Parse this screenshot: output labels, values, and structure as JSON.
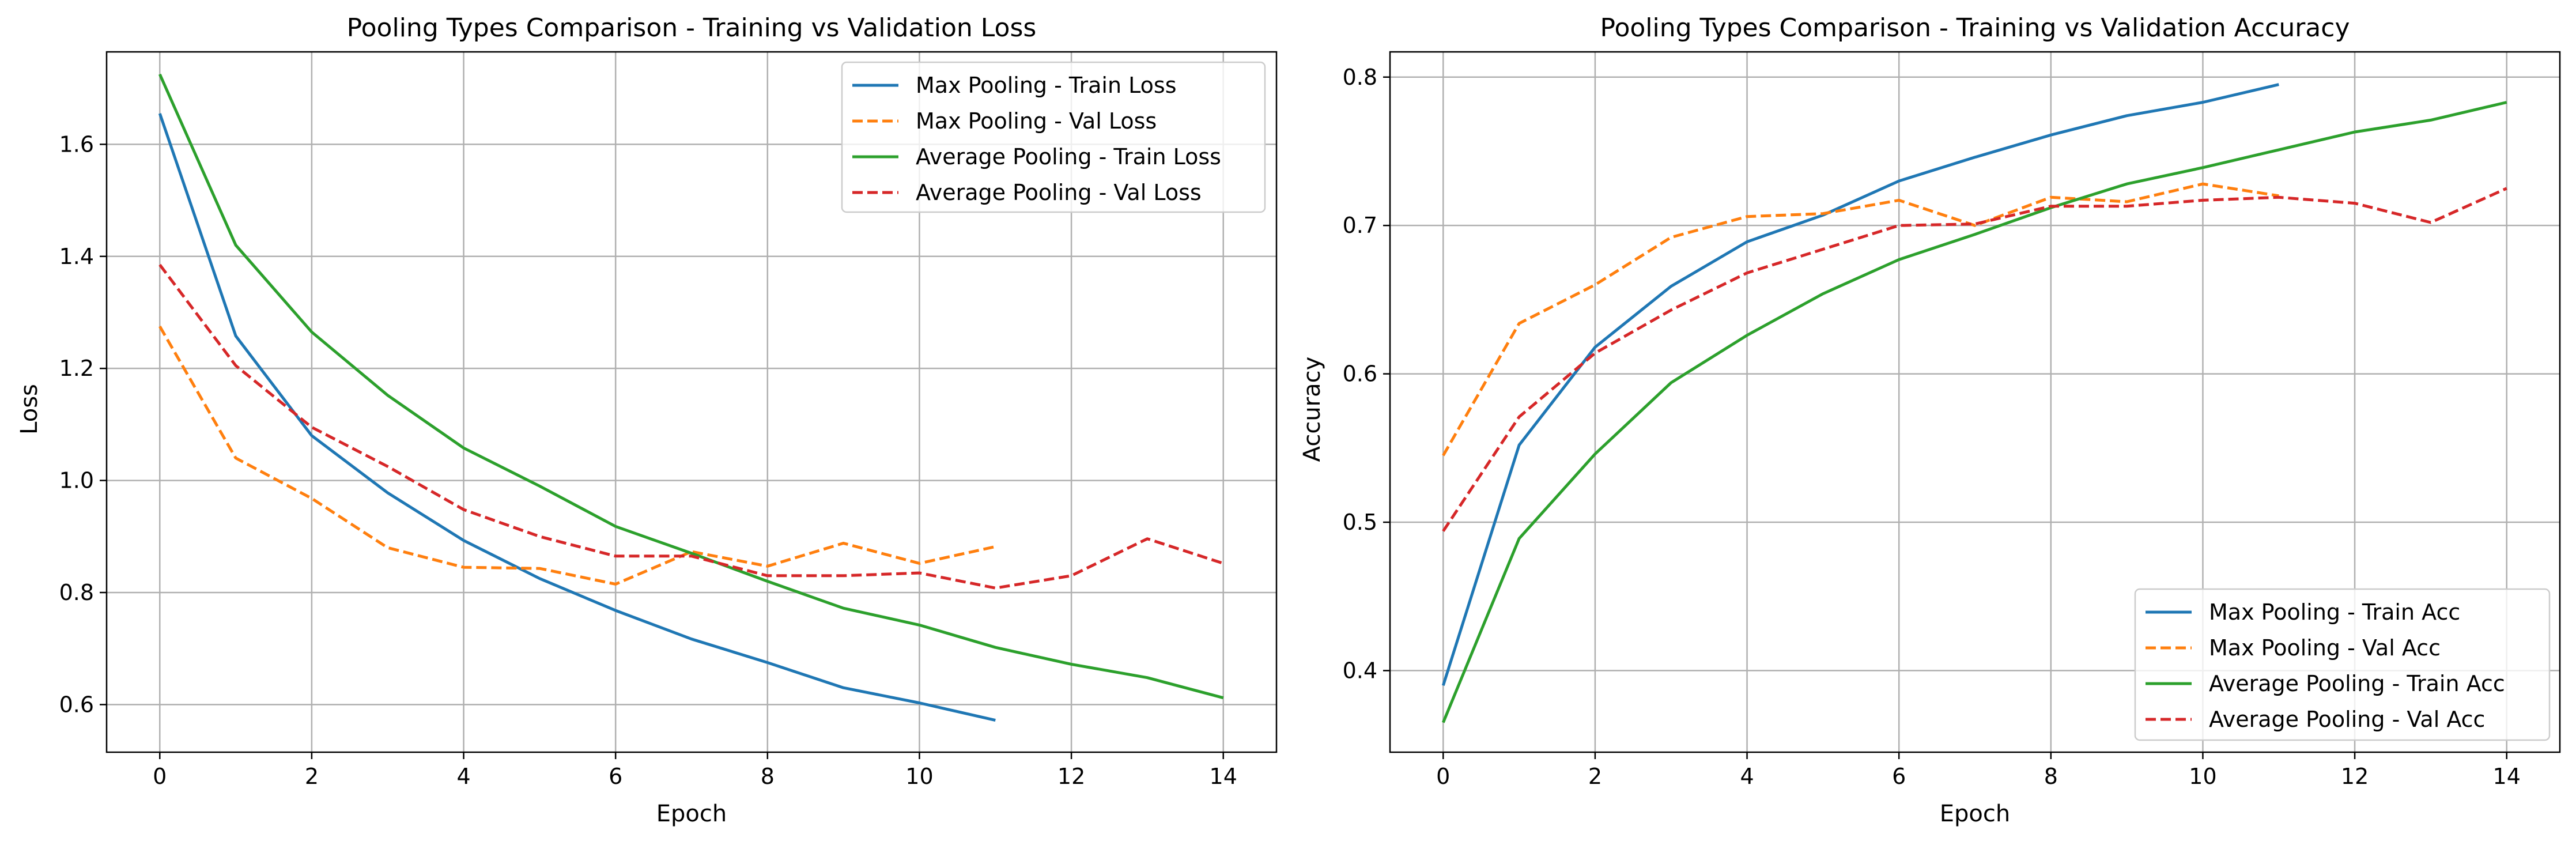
{
  "figure": {
    "background": "#ffffff",
    "grid_color": "#b0b0b0",
    "axes_color": "#000000"
  },
  "chart_data": [
    {
      "type": "line",
      "title": "Pooling Types Comparison - Training vs Validation Loss",
      "xlabel": "Epoch",
      "ylabel": "Loss",
      "xlim": [
        -0.7,
        14.7
      ],
      "ylim": [
        0.515,
        1.765
      ],
      "xticks": [
        0,
        2,
        4,
        6,
        8,
        10,
        12,
        14
      ],
      "yticks": [
        0.6,
        0.8,
        1.0,
        1.2,
        1.4,
        1.6
      ],
      "ytick_decimals": 1,
      "grid": true,
      "legend_position": "top-right",
      "series": [
        {
          "name": "Max Pooling - Train Loss",
          "color": "#1f77b4",
          "dash": "solid",
          "x": [
            0,
            1,
            2,
            3,
            4,
            5,
            6,
            7,
            8,
            9,
            10,
            11
          ],
          "y": [
            1.655,
            1.258,
            1.08,
            0.978,
            0.893,
            0.825,
            0.768,
            0.717,
            0.675,
            0.63,
            0.603,
            0.572
          ]
        },
        {
          "name": "Max Pooling - Val Loss",
          "color": "#ff7f0e",
          "dash": "dashed",
          "x": [
            0,
            1,
            2,
            3,
            4,
            5,
            6,
            7,
            8,
            9,
            10,
            11
          ],
          "y": [
            1.275,
            1.04,
            0.968,
            0.88,
            0.845,
            0.843,
            0.815,
            0.873,
            0.847,
            0.888,
            0.852,
            0.882
          ]
        },
        {
          "name": "Average Pooling - Train Loss",
          "color": "#2ca02c",
          "dash": "solid",
          "x": [
            0,
            1,
            2,
            3,
            4,
            5,
            6,
            7,
            8,
            9,
            10,
            11,
            12,
            13,
            14
          ],
          "y": [
            1.725,
            1.42,
            1.265,
            1.152,
            1.058,
            0.99,
            0.918,
            0.87,
            0.82,
            0.772,
            0.742,
            0.702,
            0.672,
            0.648,
            0.612
          ]
        },
        {
          "name": "Average Pooling - Val Loss",
          "color": "#d62728",
          "dash": "dashed",
          "x": [
            0,
            1,
            2,
            3,
            4,
            5,
            6,
            7,
            8,
            9,
            10,
            11,
            12,
            13,
            14
          ],
          "y": [
            1.385,
            1.205,
            1.095,
            1.025,
            0.948,
            0.9,
            0.865,
            0.865,
            0.83,
            0.83,
            0.835,
            0.808,
            0.83,
            0.896,
            0.852
          ]
        }
      ]
    },
    {
      "type": "line",
      "title": "Pooling Types Comparison - Training vs Validation Accuracy",
      "xlabel": "Epoch",
      "ylabel": "Accuracy",
      "xlim": [
        -0.7,
        14.7
      ],
      "ylim": [
        0.345,
        0.817
      ],
      "xticks": [
        0,
        2,
        4,
        6,
        8,
        10,
        12,
        14
      ],
      "yticks": [
        0.4,
        0.5,
        0.6,
        0.7,
        0.8
      ],
      "ytick_decimals": 1,
      "grid": true,
      "legend_position": "bottom-right",
      "series": [
        {
          "name": "Max Pooling - Train Acc",
          "color": "#1f77b4",
          "dash": "solid",
          "x": [
            0,
            1,
            2,
            3,
            4,
            5,
            6,
            7,
            8,
            9,
            10,
            11
          ],
          "y": [
            0.39,
            0.552,
            0.618,
            0.659,
            0.689,
            0.707,
            0.73,
            0.746,
            0.761,
            0.774,
            0.783,
            0.795
          ]
        },
        {
          "name": "Max Pooling - Val Acc",
          "color": "#ff7f0e",
          "dash": "dashed",
          "x": [
            0,
            1,
            2,
            3,
            4,
            5,
            6,
            7,
            8,
            9,
            10,
            11
          ],
          "y": [
            0.545,
            0.634,
            0.66,
            0.692,
            0.706,
            0.708,
            0.717,
            0.7,
            0.719,
            0.716,
            0.728,
            0.72
          ]
        },
        {
          "name": "Average Pooling - Train Acc",
          "color": "#2ca02c",
          "dash": "solid",
          "x": [
            0,
            1,
            2,
            3,
            4,
            5,
            6,
            7,
            8,
            9,
            10,
            11,
            12,
            13,
            14
          ],
          "y": [
            0.365,
            0.489,
            0.546,
            0.594,
            0.626,
            0.654,
            0.677,
            0.694,
            0.712,
            0.728,
            0.739,
            0.751,
            0.763,
            0.771,
            0.783
          ]
        },
        {
          "name": "Average Pooling - Val Acc",
          "color": "#d62728",
          "dash": "dashed",
          "x": [
            0,
            1,
            2,
            3,
            4,
            5,
            6,
            7,
            8,
            9,
            10,
            11,
            12,
            13,
            14
          ],
          "y": [
            0.494,
            0.571,
            0.614,
            0.643,
            0.668,
            0.684,
            0.7,
            0.701,
            0.713,
            0.713,
            0.717,
            0.719,
            0.715,
            0.702,
            0.725
          ]
        }
      ]
    }
  ]
}
